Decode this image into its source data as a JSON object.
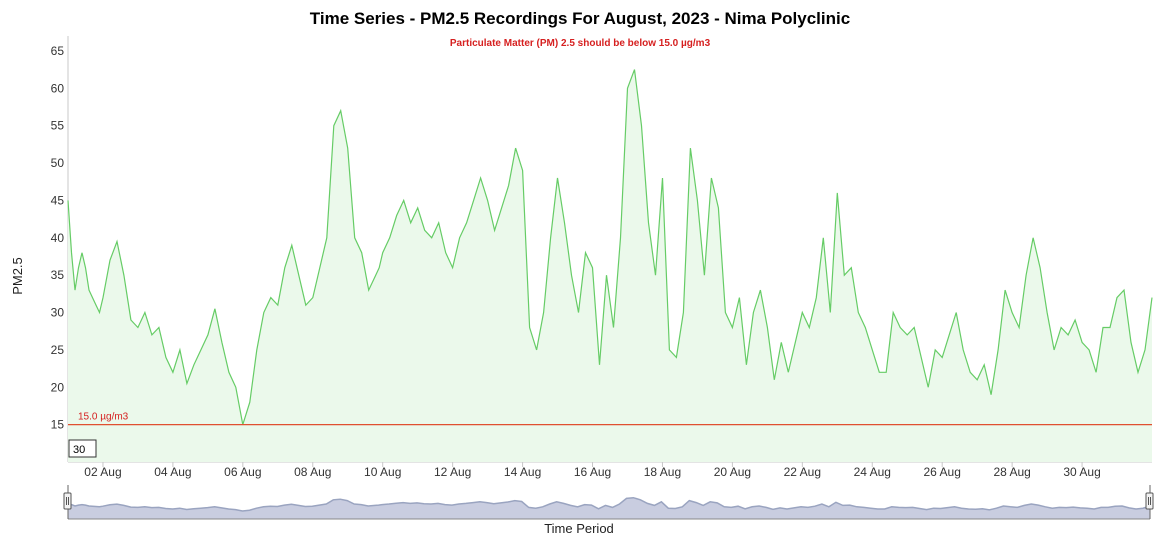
{
  "chart_data": {
    "type": "area",
    "title": "Time Series - PM2.5 Recordings For August, 2023 - Nima Polyclinic",
    "subtitle": "Particulate Matter (PM) 2.5 should be below 15.0 µg/m3",
    "ylabel": "PM2.5",
    "xlabel": "Time Period",
    "ylim": [
      10,
      67
    ],
    "xlim": [
      1.0,
      32.0
    ],
    "yticks": [
      15,
      20,
      25,
      30,
      35,
      40,
      45,
      50,
      55,
      60,
      65
    ],
    "xticks": [
      {
        "x": 2,
        "label": "02 Aug"
      },
      {
        "x": 4,
        "label": "04 Aug"
      },
      {
        "x": 6,
        "label": "06 Aug"
      },
      {
        "x": 8,
        "label": "08 Aug"
      },
      {
        "x": 10,
        "label": "10 Aug"
      },
      {
        "x": 12,
        "label": "12 Aug"
      },
      {
        "x": 14,
        "label": "14 Aug"
      },
      {
        "x": 16,
        "label": "16 Aug"
      },
      {
        "x": 18,
        "label": "18 Aug"
      },
      {
        "x": 20,
        "label": "20 Aug"
      },
      {
        "x": 22,
        "label": "22 Aug"
      },
      {
        "x": 24,
        "label": "24 Aug"
      },
      {
        "x": 26,
        "label": "26 Aug"
      },
      {
        "x": 28,
        "label": "28 Aug"
      },
      {
        "x": 30,
        "label": "30 Aug"
      }
    ],
    "threshold": {
      "value": 15.0,
      "label": "15.0 µg/m3",
      "color": "#e05030"
    },
    "rolling_period_value": "30",
    "line_color": "#66cc66",
    "fill_color": "#ebf9eb",
    "navigator_color": "#9aa4c0",
    "series": [
      {
        "x": [
          1.0,
          1.1,
          1.2,
          1.3,
          1.4,
          1.5,
          1.6,
          1.7,
          1.8,
          1.9,
          2.0,
          2.2,
          2.4,
          2.6,
          2.8,
          3.0,
          3.2,
          3.4,
          3.6,
          3.8,
          4.0,
          4.2,
          4.4,
          4.6,
          4.8,
          5.0,
          5.2,
          5.4,
          5.6,
          5.8,
          6.0,
          6.2,
          6.4,
          6.6,
          6.8,
          7.0,
          7.2,
          7.4,
          7.6,
          7.8,
          8.0,
          8.2,
          8.4,
          8.6,
          8.8,
          9.0,
          9.2,
          9.4,
          9.6,
          9.8,
          9.9,
          10.0,
          10.2,
          10.4,
          10.6,
          10.8,
          11.0,
          11.2,
          11.4,
          11.6,
          11.8,
          12.0,
          12.2,
          12.4,
          12.6,
          12.8,
          13.0,
          13.2,
          13.4,
          13.6,
          13.8,
          14.0,
          14.2,
          14.4,
          14.6,
          14.8,
          15.0,
          15.2,
          15.4,
          15.6,
          15.8,
          16.0,
          16.2,
          16.4,
          16.6,
          16.8,
          17.0,
          17.2,
          17.4,
          17.6,
          17.8,
          18.0,
          18.2,
          18.4,
          18.6,
          18.8,
          19.0,
          19.2,
          19.4,
          19.6,
          19.8,
          20.0,
          20.2,
          20.4,
          20.6,
          20.8,
          21.0,
          21.2,
          21.4,
          21.6,
          21.8,
          22.0,
          22.2,
          22.4,
          22.6,
          22.8,
          23.0,
          23.2,
          23.4,
          23.6,
          23.8,
          24.0,
          24.2,
          24.4,
          24.6,
          24.8,
          25.0,
          25.2,
          25.4,
          25.6,
          25.8,
          26.0,
          26.2,
          26.4,
          26.6,
          26.8,
          27.0,
          27.2,
          27.4,
          27.6,
          27.8,
          28.0,
          28.2,
          28.4,
          28.6,
          28.8,
          29.0,
          29.2,
          29.4,
          29.6,
          29.8,
          30.0,
          30.2,
          30.4,
          30.6,
          30.8,
          31.0,
          31.2,
          31.4,
          31.6,
          31.8,
          32.0
        ],
        "y": [
          45,
          38,
          33,
          36,
          38,
          36,
          33,
          32,
          31,
          30,
          32,
          37,
          39.5,
          35,
          29,
          28,
          30,
          27,
          28,
          24,
          22,
          25,
          20.5,
          23,
          25,
          27,
          30.5,
          26,
          22,
          20,
          15,
          18,
          25,
          30,
          32,
          31,
          36,
          39,
          35,
          31,
          32,
          36,
          40,
          55,
          57,
          52,
          40,
          38,
          33,
          35,
          36,
          38,
          40,
          43,
          45,
          42,
          44,
          41,
          40,
          42,
          38,
          36,
          40,
          42,
          45,
          48,
          45,
          41,
          44,
          47,
          52,
          49,
          28,
          25,
          30,
          40,
          48,
          42,
          35,
          30,
          38,
          36,
          23,
          35,
          28,
          40,
          60,
          62.5,
          55,
          42,
          35,
          48,
          25,
          24,
          30,
          52,
          45,
          35,
          48,
          44,
          30,
          28,
          32,
          23,
          30,
          33,
          28,
          21,
          26,
          22,
          26,
          30,
          28,
          32,
          40,
          30,
          46,
          35,
          36,
          30,
          28,
          25,
          22,
          22,
          30,
          28,
          27,
          28,
          24,
          20,
          25,
          24,
          27,
          30,
          25,
          22,
          21,
          23,
          19,
          25,
          33,
          30,
          28,
          35,
          40,
          36,
          30,
          25,
          28,
          27,
          29,
          26,
          25,
          22,
          28,
          28,
          32,
          33,
          26,
          22,
          25,
          32
        ]
      }
    ]
  }
}
